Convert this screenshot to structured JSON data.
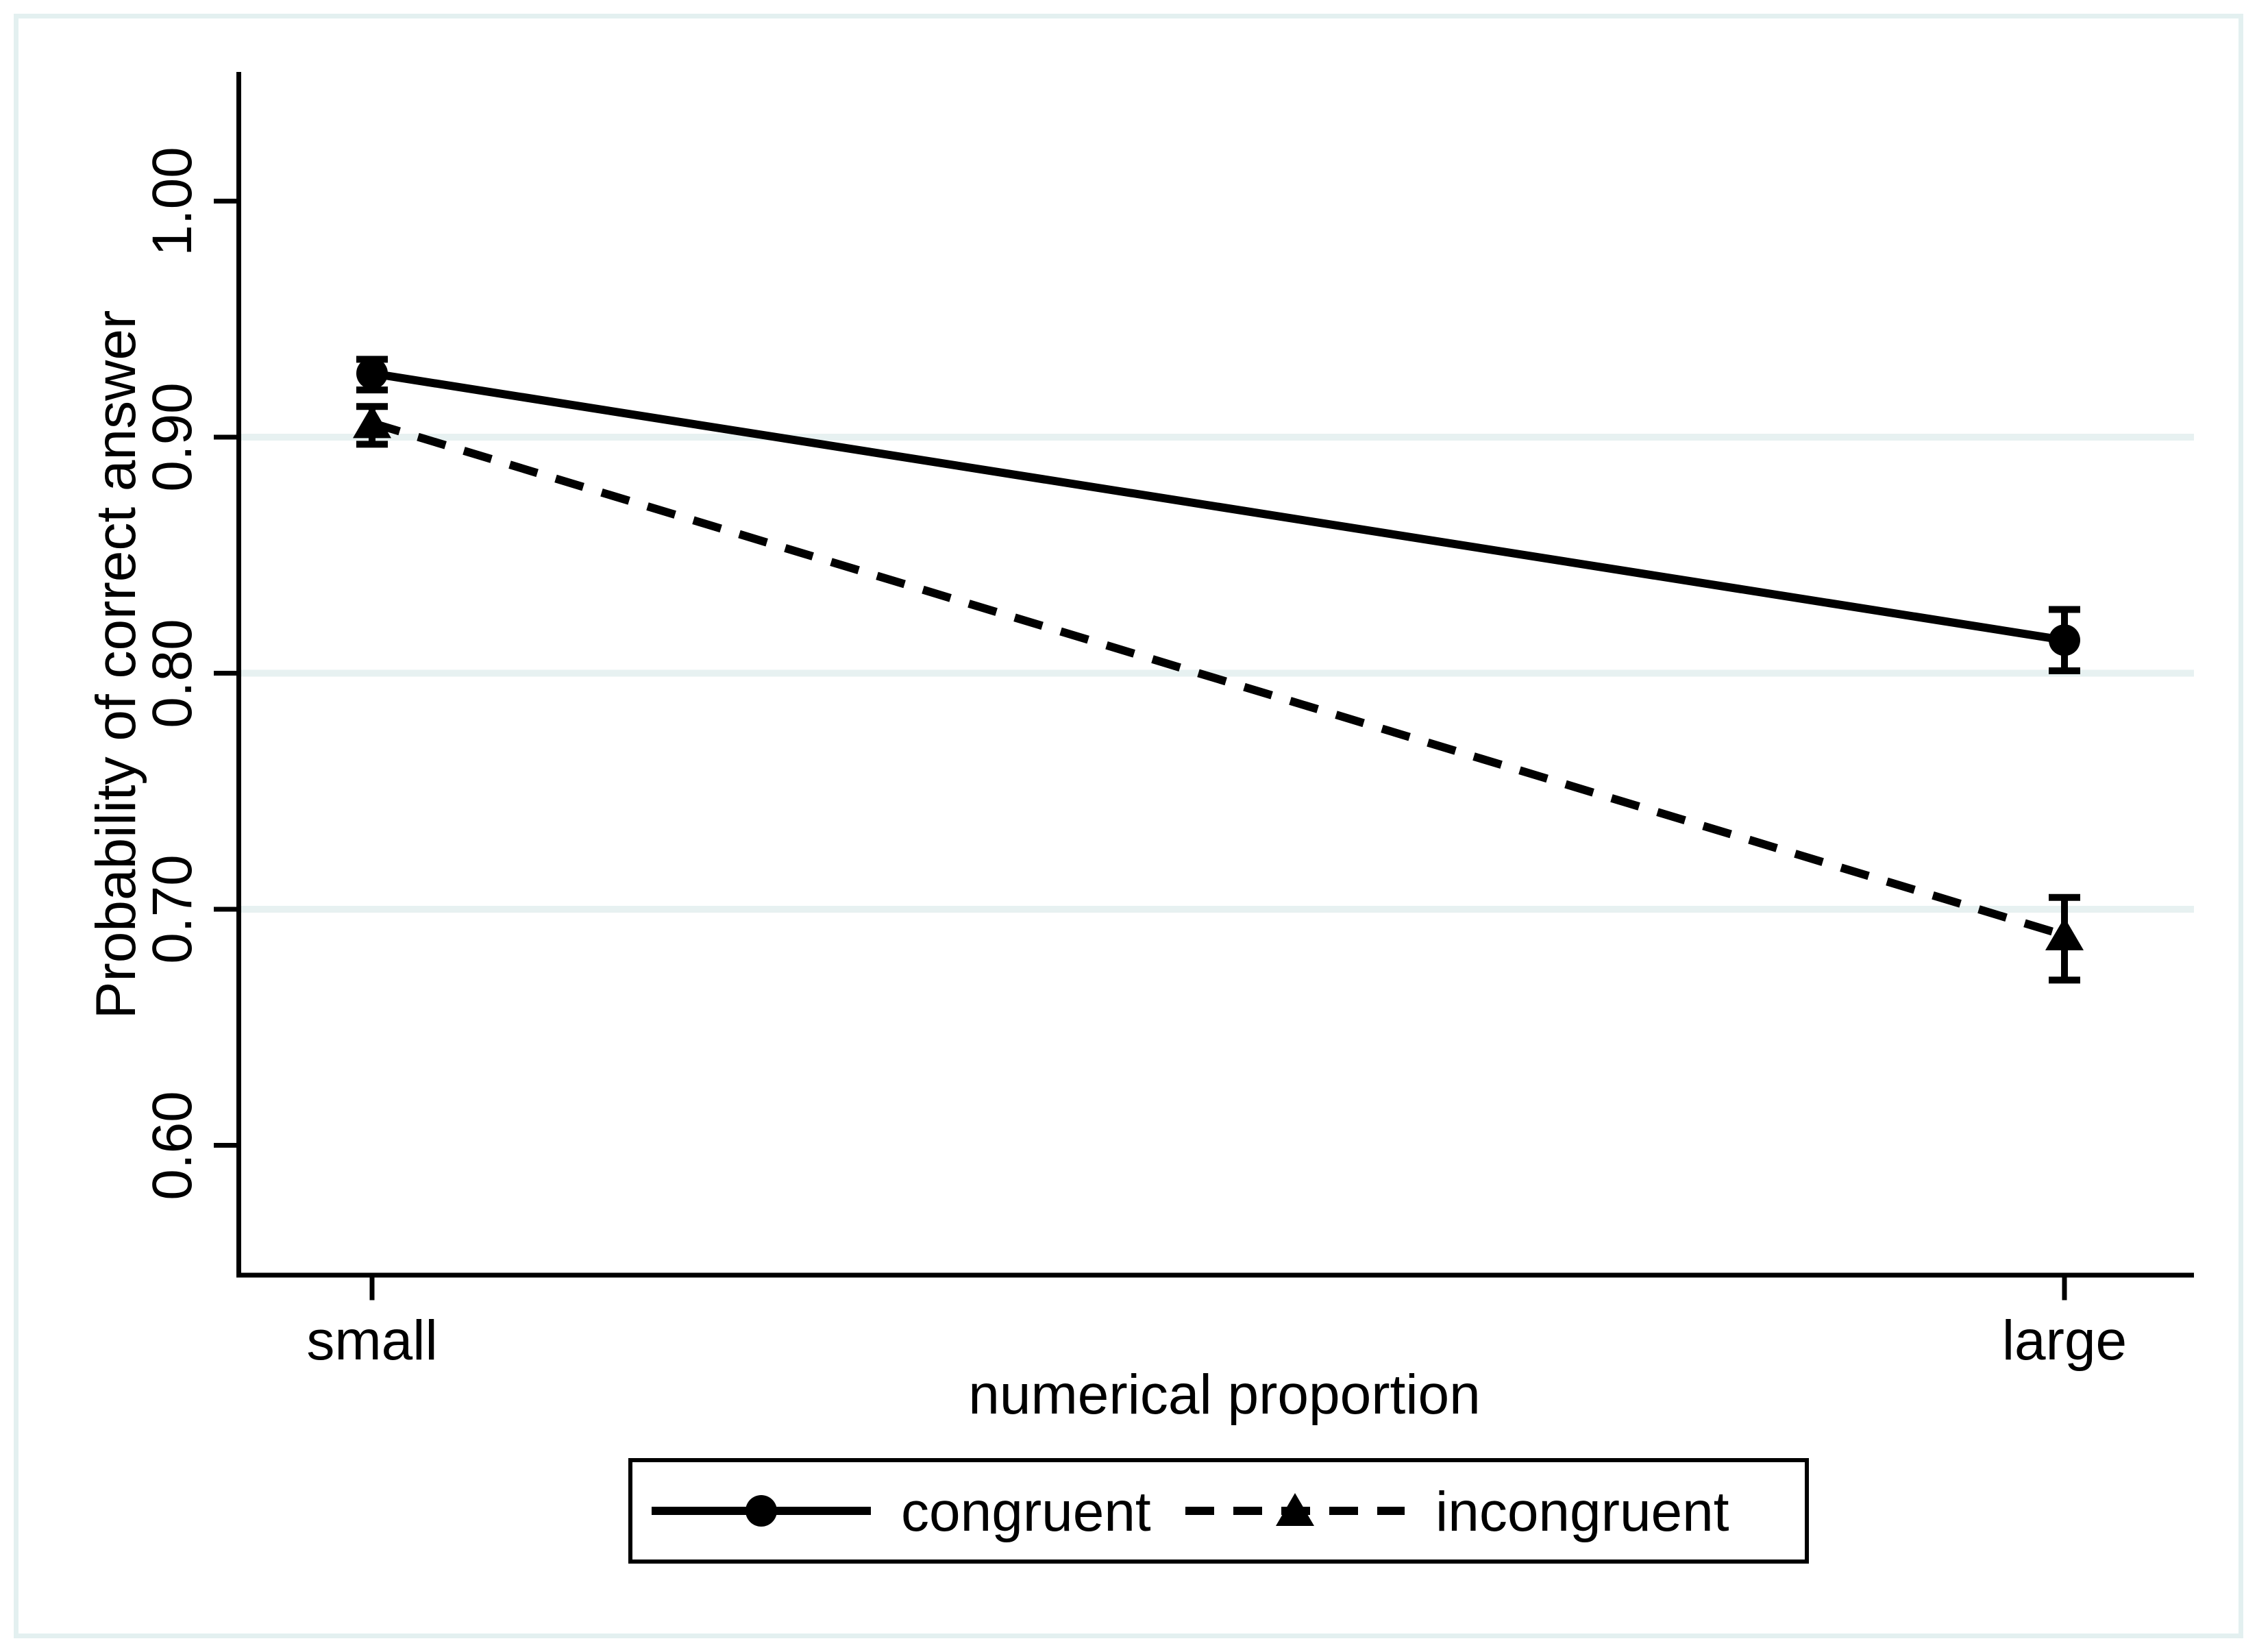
{
  "figure": {
    "y_axis_title": "Probability of correct answer",
    "x_axis_title": "numerical proportion"
  },
  "legend": {
    "items": [
      {
        "label": "congruent",
        "marker": "circle-icon",
        "line_style": "solid"
      },
      {
        "label": "incongruent",
        "marker": "triangle-icon",
        "line_style": "dashed"
      }
    ]
  },
  "chart_data": {
    "type": "line",
    "title": "",
    "xlabel": "numerical proportion",
    "ylabel": "Probability of correct answer",
    "categories": [
      "small",
      "large"
    ],
    "y_ticks": [
      1.0,
      0.9,
      0.8,
      0.7,
      0.6
    ],
    "y_tick_labels": [
      "1.00",
      "0.90",
      "0.80",
      "0.70",
      "0.60"
    ],
    "ylim": [
      0.545,
      1.055
    ],
    "grid": true,
    "grid_values": [
      0.9,
      0.8,
      0.7
    ],
    "legend_position": "bottom",
    "error_bars": true,
    "series": [
      {
        "name": "congruent",
        "marker": "circle",
        "line_style": "solid",
        "values": [
          0.927,
          0.814
        ],
        "ci_low": [
          0.92,
          0.801
        ],
        "ci_high": [
          0.933,
          0.827
        ]
      },
      {
        "name": "incongruent",
        "marker": "triangle",
        "line_style": "dashed",
        "values": [
          0.906,
          0.689
        ],
        "ci_low": [
          0.897,
          0.67
        ],
        "ci_high": [
          0.913,
          0.705
        ]
      }
    ],
    "colors": {
      "series": "#000000",
      "gridline": "#e7f1f1",
      "frame": "#e3f0f0",
      "background": "#ffffff"
    }
  }
}
